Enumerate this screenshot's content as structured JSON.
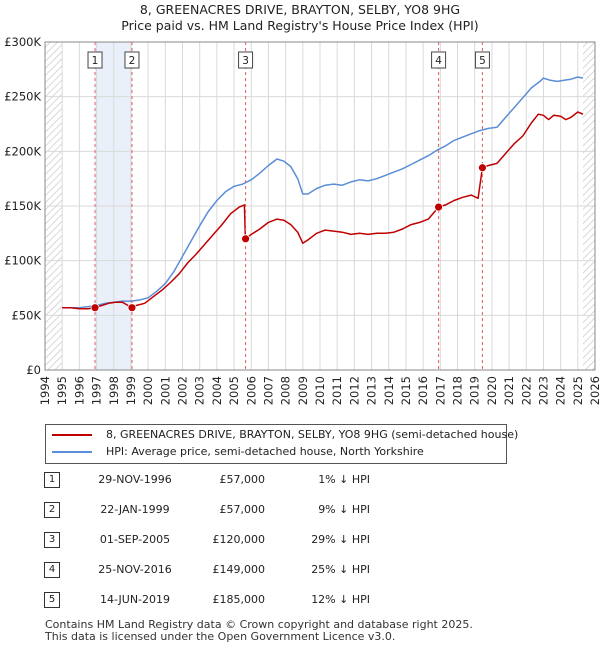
{
  "chart_data": {
    "type": "line",
    "title": "8, GREENACRES DRIVE, BRAYTON, SELBY, YO8 9HG",
    "subtitle": "Price paid vs. HM Land Registry's House Price Index (HPI)",
    "xlabel": "",
    "ylabel": "",
    "xlim": [
      1994,
      2026
    ],
    "ylim": [
      0,
      300000
    ],
    "x_ticks": [
      1994,
      1995,
      1996,
      1997,
      1998,
      1999,
      2000,
      2001,
      2002,
      2003,
      2004,
      2005,
      2006,
      2007,
      2008,
      2009,
      2010,
      2011,
      2012,
      2013,
      2014,
      2015,
      2016,
      2017,
      2018,
      2019,
      2020,
      2021,
      2022,
      2023,
      2024,
      2025,
      2026
    ],
    "y_ticks": [
      {
        "value": 0,
        "label": "£0"
      },
      {
        "value": 50000,
        "label": "£50K"
      },
      {
        "value": 100000,
        "label": "£100K"
      },
      {
        "value": 150000,
        "label": "£150K"
      },
      {
        "value": 200000,
        "label": "£200K"
      },
      {
        "value": 250000,
        "label": "£250K"
      },
      {
        "value": 300000,
        "label": "£300K"
      }
    ],
    "grid": true,
    "hatched_ranges": [
      [
        1994.0,
        1995.0
      ],
      [
        2025.3,
        2026.0
      ]
    ],
    "shaded_ranges": [
      [
        1996.91,
        1999.06
      ]
    ],
    "series": [
      {
        "name": "8, GREENACRES DRIVE, BRAYTON, SELBY, YO8 9HG (semi-detached house)",
        "color": "#c00000",
        "x": [
          1995.0,
          1995.5,
          1996.0,
          1996.5,
          1996.91,
          1997.3,
          1997.7,
          1998.1,
          1998.5,
          1999.06,
          1999.3,
          1999.8,
          2000.3,
          2000.8,
          2001.3,
          2001.8,
          2002.3,
          2002.8,
          2003.3,
          2003.8,
          2004.3,
          2004.8,
          2005.3,
          2005.6,
          2005.66,
          2006.0,
          2006.5,
          2007.0,
          2007.5,
          2007.9,
          2008.3,
          2008.7,
          2009.0,
          2009.3,
          2009.8,
          2010.3,
          2010.8,
          2011.3,
          2011.8,
          2012.3,
          2012.8,
          2013.3,
          2013.8,
          2014.3,
          2014.8,
          2015.3,
          2015.8,
          2016.3,
          2016.9,
          2017.3,
          2017.8,
          2018.3,
          2018.8,
          2019.2,
          2019.45,
          2019.8,
          2020.3,
          2020.8,
          2021.3,
          2021.8,
          2022.3,
          2022.7,
          2023.0,
          2023.3,
          2023.6,
          2024.0,
          2024.3,
          2024.6,
          2025.0,
          2025.3
        ],
        "y": [
          57000,
          57000,
          56000,
          56000,
          57000,
          59000,
          61000,
          62000,
          62000,
          57000,
          59000,
          61000,
          67000,
          73000,
          80000,
          88000,
          98000,
          106000,
          115000,
          124000,
          133000,
          143000,
          149000,
          151000,
          120000,
          124000,
          129000,
          135000,
          138000,
          137000,
          133000,
          126000,
          116000,
          119000,
          125000,
          128000,
          127000,
          126000,
          124000,
          125000,
          124000,
          125000,
          125000,
          126000,
          129000,
          133000,
          135000,
          138000,
          149000,
          151000,
          155000,
          158000,
          160000,
          157000,
          185000,
          187000,
          189000,
          198000,
          207000,
          214000,
          226000,
          234000,
          233000,
          229000,
          233000,
          232000,
          229000,
          231000,
          236000,
          234000
        ]
      },
      {
        "name": "HPI: Average price, semi-detached house, North Yorkshire",
        "color": "#5b8ed6",
        "x": [
          1995.0,
          1995.5,
          1996.0,
          1996.5,
          1997.0,
          1997.5,
          1998.0,
          1998.5,
          1999.0,
          1999.5,
          2000.0,
          2000.5,
          2001.0,
          2001.5,
          2002.0,
          2002.5,
          2003.0,
          2003.5,
          2004.0,
          2004.5,
          2005.0,
          2005.5,
          2006.0,
          2006.5,
          2007.0,
          2007.5,
          2007.9,
          2008.3,
          2008.7,
          2009.0,
          2009.3,
          2009.8,
          2010.3,
          2010.8,
          2011.3,
          2011.8,
          2012.3,
          2012.8,
          2013.3,
          2013.8,
          2014.3,
          2014.8,
          2015.3,
          2015.8,
          2016.3,
          2016.8,
          2017.3,
          2017.8,
          2018.3,
          2018.8,
          2019.3,
          2019.8,
          2020.3,
          2020.8,
          2021.3,
          2021.8,
          2022.3,
          2022.8,
          2023.0,
          2023.4,
          2023.8,
          2024.2,
          2024.6,
          2025.0,
          2025.3
        ],
        "y": [
          57000,
          57000,
          57000,
          58000,
          59000,
          61000,
          62000,
          63000,
          63000,
          64000,
          66000,
          72000,
          79000,
          90000,
          104000,
          118000,
          132000,
          145000,
          155000,
          163000,
          168000,
          170000,
          174000,
          180000,
          187000,
          193000,
          191000,
          186000,
          175000,
          161000,
          161000,
          166000,
          169000,
          170000,
          169000,
          172000,
          174000,
          173000,
          175000,
          178000,
          181000,
          184000,
          188000,
          192000,
          196000,
          201000,
          205000,
          210000,
          213000,
          216000,
          219000,
          221000,
          222000,
          231000,
          240000,
          249000,
          258000,
          264000,
          267000,
          265000,
          264000,
          265000,
          266000,
          268000,
          267000
        ]
      }
    ],
    "markers": [
      {
        "label": "1",
        "x": 1996.91,
        "y": 57000
      },
      {
        "label": "2",
        "x": 1999.06,
        "y": 57000
      },
      {
        "label": "3",
        "x": 2005.67,
        "y": 120000
      },
      {
        "label": "4",
        "x": 2016.9,
        "y": 149000
      },
      {
        "label": "5",
        "x": 2019.45,
        "y": 185000
      }
    ],
    "legend": {
      "position": "below",
      "entries": [
        {
          "label": "8, GREENACRES DRIVE, BRAYTON, SELBY, YO8 9HG (semi-detached house)",
          "color": "#c00000"
        },
        {
          "label": "HPI: Average price, semi-detached house, North Yorkshire",
          "color": "#5b8ed6"
        }
      ]
    }
  },
  "sales": [
    {
      "num": "1",
      "date": "29-NOV-1996",
      "price": "£57,000",
      "hpi": "1% ↓ HPI"
    },
    {
      "num": "2",
      "date": "22-JAN-1999",
      "price": "£57,000",
      "hpi": "9% ↓ HPI"
    },
    {
      "num": "3",
      "date": "01-SEP-2005",
      "price": "£120,000",
      "hpi": "29% ↓ HPI"
    },
    {
      "num": "4",
      "date": "25-NOV-2016",
      "price": "£149,000",
      "hpi": "25% ↓ HPI"
    },
    {
      "num": "5",
      "date": "14-JUN-2019",
      "price": "£185,000",
      "hpi": "12% ↓ HPI"
    }
  ],
  "footer": {
    "line1": "Contains HM Land Registry data © Crown copyright and database right 2025.",
    "line2": "This data is licensed under the Open Government Licence v3.0."
  }
}
